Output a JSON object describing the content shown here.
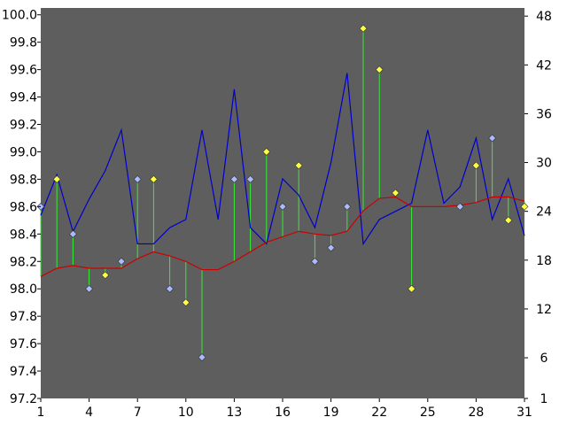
{
  "chart_data": {
    "type": "line",
    "plot_background": "#5e5e5e",
    "page_background": "#ffffff",
    "x": [
      1,
      2,
      3,
      4,
      5,
      6,
      7,
      8,
      9,
      10,
      11,
      12,
      13,
      14,
      15,
      16,
      17,
      18,
      19,
      20,
      21,
      22,
      23,
      24,
      25,
      26,
      27,
      28,
      29,
      30,
      31
    ],
    "xlim": [
      1,
      31
    ],
    "x_ticks": [
      "1",
      "4",
      "7",
      "10",
      "13",
      "16",
      "19",
      "22",
      "25",
      "28",
      "31"
    ],
    "left_axis": {
      "ylim": [
        97.2,
        100.05
      ],
      "tick_labels": [
        "97.2",
        "97.4",
        "97.6",
        "97.8",
        "98.0",
        "98.2",
        "98.4",
        "98.6",
        "98.8",
        "99.0",
        "99.2",
        "99.4",
        "99.6",
        "99.8",
        "100.0"
      ]
    },
    "right_axis": {
      "ylim": [
        1,
        49
      ],
      "tick_labels": [
        "1",
        "6",
        "12",
        "18",
        "24",
        "30",
        "36",
        "42",
        "48"
      ]
    },
    "series": [
      {
        "axis": "right",
        "style": "line",
        "color": "#0000cc",
        "values": [
          23.5,
          28.5,
          21.5,
          25.5,
          29,
          34,
          20,
          20,
          22,
          23,
          34,
          23,
          39,
          22,
          20,
          28,
          26,
          22,
          30,
          41,
          20,
          23,
          24,
          25,
          34,
          25,
          27,
          33,
          23,
          28,
          21
        ]
      },
      {
        "axis": "left",
        "style": "line",
        "color": "#cc0000",
        "values": [
          98.09,
          98.15,
          98.17,
          98.15,
          98.15,
          98.15,
          98.22,
          98.27,
          98.24,
          98.2,
          98.14,
          98.14,
          98.2,
          98.27,
          98.34,
          98.38,
          98.42,
          98.4,
          98.39,
          98.42,
          98.57,
          98.66,
          98.67,
          98.6,
          98.6,
          98.6,
          98.61,
          98.63,
          98.67,
          98.67,
          98.64
        ]
      },
      {
        "axis": "left",
        "style": "markers-with-stems",
        "stem_color": "#33ee33",
        "points": [
          {
            "x": 1,
            "y": 98.6,
            "color": "#aabbff"
          },
          {
            "x": 2,
            "y": 98.8,
            "color": "#ffff44"
          },
          {
            "x": 3,
            "y": 98.4,
            "color": "#aabbff"
          },
          {
            "x": 4,
            "y": 98.0,
            "color": "#aabbff"
          },
          {
            "x": 5,
            "y": 98.1,
            "color": "#ffff44"
          },
          {
            "x": 6,
            "y": 98.2,
            "color": "#aabbff"
          },
          {
            "x": 7,
            "y": 98.8,
            "color": "#aabbff"
          },
          {
            "x": 8,
            "y": 98.8,
            "color": "#ffff44"
          },
          {
            "x": 9,
            "y": 98.0,
            "color": "#aabbff"
          },
          {
            "x": 10,
            "y": 97.9,
            "color": "#ffff44"
          },
          {
            "x": 11,
            "y": 97.5,
            "color": "#aabbff"
          },
          {
            "x": 13,
            "y": 98.8,
            "color": "#aabbff"
          },
          {
            "x": 14,
            "y": 98.8,
            "color": "#aabbff"
          },
          {
            "x": 15,
            "y": 99.0,
            "color": "#ffff44"
          },
          {
            "x": 16,
            "y": 98.6,
            "color": "#aabbff"
          },
          {
            "x": 17,
            "y": 98.9,
            "color": "#ffff44"
          },
          {
            "x": 18,
            "y": 98.2,
            "color": "#aabbff"
          },
          {
            "x": 19,
            "y": 98.3,
            "color": "#aabbff"
          },
          {
            "x": 20,
            "y": 98.6,
            "color": "#aabbff"
          },
          {
            "x": 21,
            "y": 99.9,
            "color": "#ffff44"
          },
          {
            "x": 22,
            "y": 99.6,
            "color": "#ffff44"
          },
          {
            "x": 23,
            "y": 98.7,
            "color": "#ffff44"
          },
          {
            "x": 24,
            "y": 98.0,
            "color": "#ffff44"
          },
          {
            "x": 27,
            "y": 98.6,
            "color": "#aabbff"
          },
          {
            "x": 28,
            "y": 98.9,
            "color": "#ffff44"
          },
          {
            "x": 29,
            "y": 99.1,
            "color": "#aabbff"
          },
          {
            "x": 30,
            "y": 98.5,
            "color": "#ffff44"
          },
          {
            "x": 31,
            "y": 98.6,
            "color": "#ffff44"
          }
        ]
      }
    ]
  }
}
